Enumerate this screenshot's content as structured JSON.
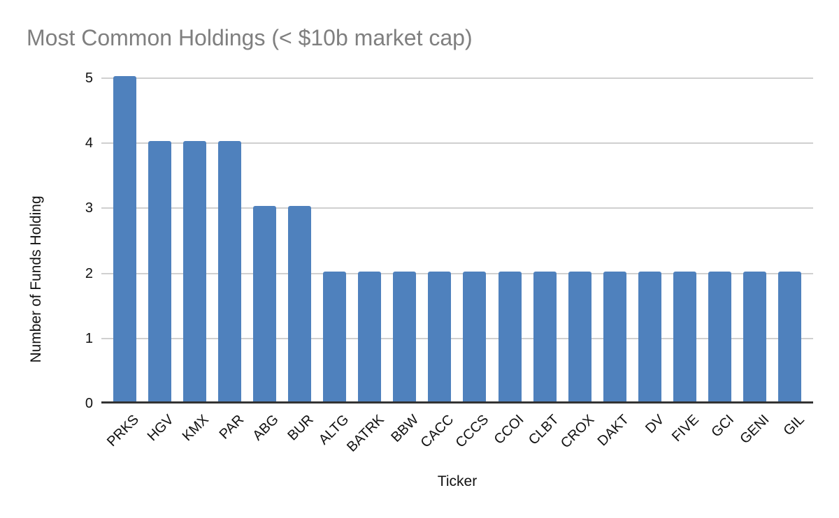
{
  "chart_data": {
    "type": "bar",
    "title": "Most Common Holdings (< $10b market cap)",
    "xlabel": "Ticker",
    "ylabel": "Number of Funds Holding",
    "categories": [
      "PRKS",
      "HGV",
      "KMX",
      "PAR",
      "ABG",
      "BUR",
      "ALTG",
      "BATRK",
      "BBW",
      "CACC",
      "CCCS",
      "CCOI",
      "CLBT",
      "CROX",
      "DAKT",
      "DV",
      "FIVE",
      "GCI",
      "GENI",
      "GIL"
    ],
    "values": [
      5,
      4,
      4,
      4,
      3,
      3,
      2,
      2,
      2,
      2,
      2,
      2,
      2,
      2,
      2,
      2,
      2,
      2,
      2,
      2
    ],
    "ylim": [
      0,
      5
    ],
    "yticks": [
      0,
      1,
      2,
      3,
      4,
      5
    ],
    "grid": "horizontal",
    "legend_position": "none",
    "colors": {
      "bar": "#4f81bd",
      "gridline": "#d0d0d0",
      "axis_line": "#333333",
      "title": "#7f7f7f",
      "tick_label": "#111111",
      "background": "#ffffff"
    }
  }
}
